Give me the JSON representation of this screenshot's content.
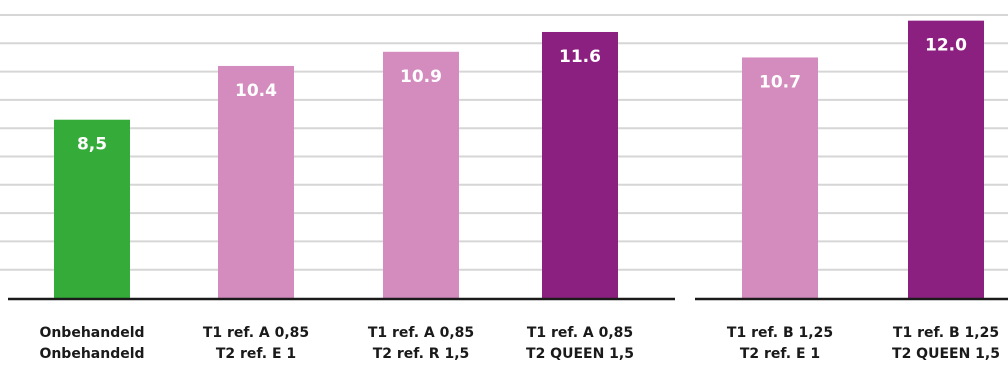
{
  "chart_data": {
    "type": "bar",
    "title": "",
    "xlabel": "",
    "ylabel": "",
    "ylim": [
      2.2,
      12.2
    ],
    "grid": true,
    "gridlines": [
      3.2,
      4.2,
      5.2,
      6.2,
      7.2,
      8.2,
      9.2,
      10.2,
      11.2,
      12.2
    ],
    "groups": [
      {
        "bars": [
          {
            "label_line1": "Onbehandeld",
            "label_line2": "Onbehandeld",
            "value": 8.5,
            "value_label": "8,5",
            "color": "#35ac3a",
            "highlight_line2": false
          },
          {
            "label_line1": "T1 ref. A 0,85",
            "label_line2": "T2 ref. E 1",
            "value": 10.4,
            "value_label": "10.4",
            "color": "#d48cbf",
            "highlight_line2": false
          },
          {
            "label_line1": "T1 ref. A 0,85",
            "label_line2": "T2 ref. R 1,5",
            "value": 10.9,
            "value_label": "10.9",
            "color": "#d48cbf",
            "highlight_line2": false
          },
          {
            "label_line1": "T1 ref. A 0,85",
            "label_line2": "T2 QUEEN 1,5",
            "value": 11.6,
            "value_label": "11.6",
            "color": "#8c2080",
            "highlight_line2": true
          }
        ]
      },
      {
        "bars": [
          {
            "label_line1": "T1 ref. B 1,25",
            "label_line2": "T2 ref. E 1",
            "value": 10.7,
            "value_label": "10.7",
            "color": "#d48cbf",
            "highlight_line2": false
          },
          {
            "label_line1": "T1 ref. B 1,25",
            "label_line2": "T2 QUEEN 1,5",
            "value": 12.0,
            "value_label": "12.0",
            "color": "#8c2080",
            "highlight_line2": true
          }
        ]
      }
    ],
    "highlight_text_color": "#8c2080",
    "label_color": "#1a1a1a"
  }
}
